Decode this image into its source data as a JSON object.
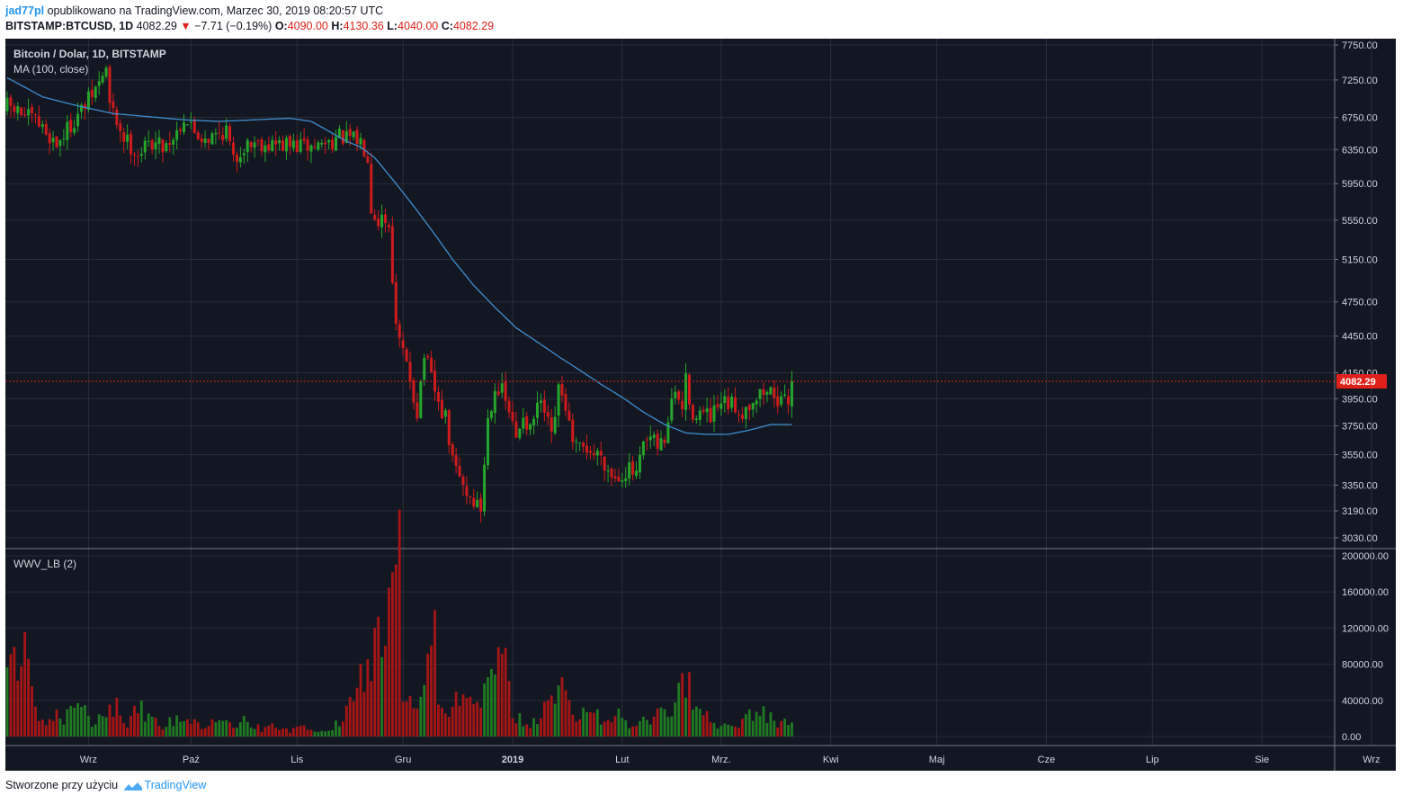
{
  "header": {
    "author": "jad77pl",
    "published_text": "opublikowano na TradingView.com, Marzec 30, 2019 08:20:57 UTC",
    "symbol": "BITSTAMP:BTCUSD, 1D",
    "last": "4082.29",
    "change": "−7.71 (−0.19%)",
    "open_label": "O:",
    "open": "4090.00",
    "high_label": "H:",
    "high": "4130.36",
    "low_label": "L:",
    "low": "4040.00",
    "close_label": "C:",
    "close": "4082.29"
  },
  "footer": {
    "text": "Stworzone przy użyciu",
    "brand": "TradingView"
  },
  "colors": {
    "background": "#131722",
    "grid": "#2a2e39",
    "up": "#26a62a",
    "down": "#d01b1b",
    "up_volume": "#1f7a22",
    "down_volume": "#a81515",
    "ma": "#3d8fd1",
    "price_line": "#e0211b",
    "axis_text": "#d1d4dc"
  },
  "chart_data": [
    {
      "type": "candlestick",
      "title": "Bitcoin / Dolar, 1D, BITSTAMP",
      "indicator_label": "MA (100, close)",
      "last_price_label": "4082.29",
      "x_tick_labels": [
        "Wrz",
        "Paź",
        "Lis",
        "Gru",
        "2019",
        "Lut",
        "Mrz.",
        "Kwi",
        "Maj",
        "Cze",
        "Lip",
        "Sie",
        "Wrz"
      ],
      "y_tick_labels": [
        "7750.00",
        "7250.00",
        "6750.00",
        "6350.00",
        "5950.00",
        "5550.00",
        "5150.00",
        "4750.00",
        "4450.00",
        "4150.00",
        "3950.00",
        "3750.00",
        "3550.00",
        "3350.00",
        "3190.00",
        "3030.00"
      ],
      "scale": "log",
      "ylim": [
        2950,
        7850
      ],
      "grid": true,
      "close_anchors": [
        [
          0,
          6900
        ],
        [
          8,
          6700
        ],
        [
          14,
          6420
        ],
        [
          22,
          6900
        ],
        [
          26,
          7200
        ],
        [
          28,
          7420
        ],
        [
          29,
          6900
        ],
        [
          33,
          6500
        ],
        [
          37,
          6300
        ],
        [
          41,
          6450
        ],
        [
          44,
          6400
        ],
        [
          47,
          6500
        ],
        [
          50,
          6750
        ],
        [
          54,
          6520
        ],
        [
          58,
          6500
        ],
        [
          62,
          6600
        ],
        [
          64,
          6200
        ],
        [
          67,
          6400
        ],
        [
          70,
          6450
        ],
        [
          74,
          6420
        ],
        [
          80,
          6400
        ],
        [
          86,
          6380
        ],
        [
          90,
          6430
        ],
        [
          94,
          6500
        ],
        [
          100,
          6450
        ],
        [
          102,
          6300
        ],
        [
          103,
          5700
        ],
        [
          105,
          5550
        ],
        [
          106,
          5600
        ],
        [
          108,
          5500
        ],
        [
          110,
          4500
        ],
        [
          112,
          4300
        ],
        [
          114,
          4100
        ],
        [
          116,
          3850
        ],
        [
          118,
          4300
        ],
        [
          120,
          4100
        ],
        [
          122,
          3900
        ],
        [
          124,
          3800
        ],
        [
          126,
          3500
        ],
        [
          128,
          3400
        ],
        [
          130,
          3300
        ],
        [
          132,
          3250
        ],
        [
          134,
          3200
        ],
        [
          136,
          3800
        ],
        [
          138,
          4050
        ],
        [
          140,
          4000
        ],
        [
          142,
          3850
        ],
        [
          144,
          3650
        ],
        [
          146,
          3850
        ],
        [
          148,
          3700
        ],
        [
          150,
          3900
        ],
        [
          152,
          3850
        ],
        [
          154,
          3650
        ],
        [
          156,
          4000
        ],
        [
          158,
          3900
        ],
        [
          160,
          3600
        ],
        [
          162,
          3580
        ],
        [
          164,
          3600
        ],
        [
          166,
          3550
        ],
        [
          168,
          3560
        ],
        [
          170,
          3450
        ],
        [
          172,
          3400
        ],
        [
          174,
          3430
        ],
        [
          176,
          3450
        ],
        [
          178,
          3400
        ],
        [
          180,
          3600
        ],
        [
          182,
          3650
        ],
        [
          184,
          3600
        ],
        [
          186,
          3650
        ],
        [
          188,
          3950
        ],
        [
          190,
          3950
        ],
        [
          191,
          3850
        ],
        [
          192,
          4150
        ],
        [
          193,
          3850
        ],
        [
          196,
          3850
        ],
        [
          199,
          3800
        ],
        [
          202,
          3900
        ],
        [
          205,
          3900
        ],
        [
          208,
          3850
        ],
        [
          211,
          3950
        ],
        [
          214,
          4000
        ],
        [
          217,
          4000
        ],
        [
          219,
          3900
        ],
        [
          221,
          3950
        ],
        [
          222,
          4082.29
        ]
      ],
      "ma_anchors": [
        [
          0,
          7280
        ],
        [
          10,
          7020
        ],
        [
          20,
          6900
        ],
        [
          30,
          6800
        ],
        [
          40,
          6760
        ],
        [
          50,
          6720
        ],
        [
          60,
          6700
        ],
        [
          70,
          6720
        ],
        [
          80,
          6740
        ],
        [
          86,
          6700
        ],
        [
          90,
          6600
        ],
        [
          96,
          6450
        ],
        [
          100,
          6380
        ],
        [
          104,
          6250
        ],
        [
          108,
          6050
        ],
        [
          114,
          5750
        ],
        [
          120,
          5450
        ],
        [
          126,
          5150
        ],
        [
          132,
          4900
        ],
        [
          138,
          4700
        ],
        [
          144,
          4520
        ],
        [
          150,
          4400
        ],
        [
          156,
          4280
        ],
        [
          162,
          4170
        ],
        [
          168,
          4060
        ],
        [
          174,
          3960
        ],
        [
          180,
          3850
        ],
        [
          186,
          3760
        ],
        [
          192,
          3700
        ],
        [
          198,
          3690
        ],
        [
          204,
          3690
        ],
        [
          210,
          3720
        ],
        [
          216,
          3760
        ],
        [
          222,
          3760
        ]
      ]
    },
    {
      "type": "bar",
      "title": "WWV_LB (2)",
      "y_tick_labels": [
        "200000.00",
        "160000.00",
        "120000.00",
        "80000.00",
        "40000.00",
        "0.00"
      ],
      "ylim": [
        0,
        200000
      ],
      "volume_anchors": [
        [
          0,
          75000
        ],
        [
          4,
          110000
        ],
        [
          6,
          125000
        ],
        [
          7,
          40000
        ],
        [
          10,
          18000
        ],
        [
          14,
          24000
        ],
        [
          16,
          15000
        ],
        [
          18,
          30000
        ],
        [
          22,
          38000
        ],
        [
          24,
          12000
        ],
        [
          28,
          25000
        ],
        [
          31,
          40000
        ],
        [
          34,
          15000
        ],
        [
          37,
          30000
        ],
        [
          40,
          25000
        ],
        [
          44,
          10000
        ],
        [
          48,
          22000
        ],
        [
          52,
          18000
        ],
        [
          55,
          12000
        ],
        [
          60,
          16000
        ],
        [
          64,
          10000
        ],
        [
          68,
          19000
        ],
        [
          72,
          8000
        ],
        [
          76,
          12000
        ],
        [
          80,
          6000
        ],
        [
          84,
          10000
        ],
        [
          88,
          5000
        ],
        [
          92,
          7000
        ],
        [
          95,
          24000
        ],
        [
          99,
          50000
        ],
        [
          101,
          65000
        ],
        [
          104,
          95000
        ],
        [
          106,
          120000
        ],
        [
          108,
          135000
        ],
        [
          109,
          165000
        ],
        [
          110,
          190000
        ],
        [
          111,
          195000
        ],
        [
          112,
          60000
        ],
        [
          114,
          45000
        ],
        [
          116,
          30000
        ],
        [
          118,
          70000
        ],
        [
          120,
          100000
        ],
        [
          121,
          115000
        ],
        [
          122,
          55000
        ],
        [
          124,
          25000
        ],
        [
          127,
          40000
        ],
        [
          130,
          35000
        ],
        [
          133,
          30000
        ],
        [
          135,
          45000
        ],
        [
          136,
          55000
        ],
        [
          137,
          75000
        ],
        [
          138,
          95000
        ],
        [
          140,
          110000
        ],
        [
          141,
          120000
        ],
        [
          142,
          45000
        ],
        [
          144,
          20000
        ],
        [
          148,
          15000
        ],
        [
          151,
          25000
        ],
        [
          153,
          35000
        ],
        [
          155,
          40000
        ],
        [
          157,
          55000
        ],
        [
          158,
          45000
        ],
        [
          160,
          20000
        ],
        [
          163,
          30000
        ],
        [
          165,
          40000
        ],
        [
          168,
          18000
        ],
        [
          170,
          15000
        ],
        [
          173,
          25000
        ],
        [
          175,
          15000
        ],
        [
          177,
          12000
        ],
        [
          180,
          20000
        ],
        [
          183,
          22000
        ],
        [
          186,
          28000
        ],
        [
          188,
          35000
        ],
        [
          190,
          60000
        ],
        [
          192,
          68000
        ],
        [
          194,
          45000
        ],
        [
          196,
          30000
        ],
        [
          198,
          40000
        ],
        [
          199,
          12000
        ],
        [
          202,
          15000
        ],
        [
          206,
          10000
        ],
        [
          209,
          18000
        ],
        [
          211,
          25000
        ],
        [
          213,
          35000
        ],
        [
          214,
          30000
        ],
        [
          217,
          15000
        ],
        [
          219,
          18000
        ],
        [
          222,
          22000
        ]
      ]
    }
  ]
}
